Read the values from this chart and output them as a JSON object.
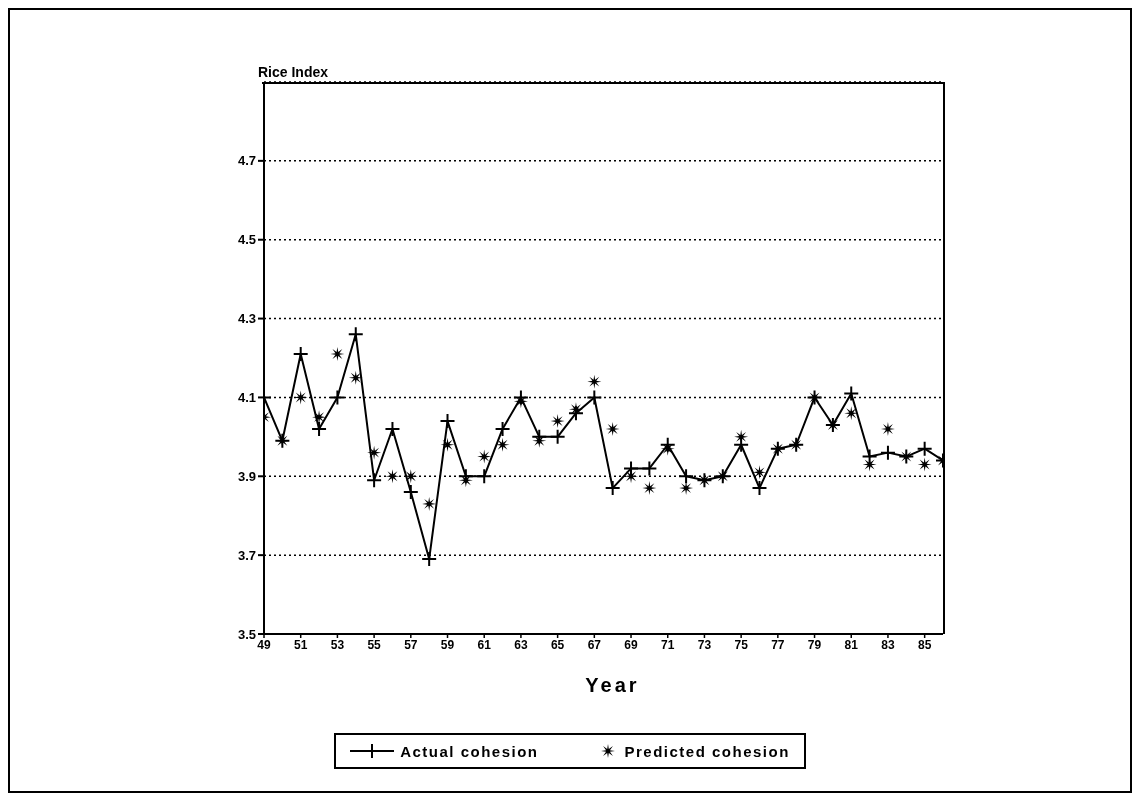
{
  "chart_data": {
    "type": "line",
    "ylabel": "Rice Index",
    "xlabel": "Year",
    "x": [
      49,
      50,
      51,
      52,
      53,
      54,
      55,
      56,
      57,
      58,
      59,
      60,
      61,
      62,
      63,
      64,
      65,
      66,
      67,
      68,
      69,
      70,
      71,
      72,
      73,
      74,
      75,
      76,
      77,
      78,
      79,
      80,
      81,
      82,
      83,
      84,
      85,
      86
    ],
    "series": [
      {
        "name": "Actual cohesion",
        "type": "line",
        "marker": "cross",
        "color": "#000000",
        "values": [
          4.1,
          3.99,
          4.21,
          4.02,
          4.1,
          4.26,
          3.89,
          4.02,
          3.86,
          3.69,
          4.04,
          3.9,
          3.9,
          4.02,
          4.1,
          4.0,
          4.0,
          4.06,
          4.1,
          3.87,
          3.92,
          3.92,
          3.98,
          3.9,
          3.89,
          3.9,
          3.98,
          3.87,
          3.97,
          3.98,
          4.1,
          4.03,
          4.11,
          3.95,
          3.96,
          3.95,
          3.97,
          3.94
        ]
      },
      {
        "name": "Predicted cohesion",
        "type": "scatter",
        "marker": "star",
        "color": "#000000",
        "values": [
          4.05,
          3.99,
          4.1,
          4.05,
          4.21,
          4.15,
          3.96,
          3.9,
          3.9,
          3.83,
          3.98,
          3.89,
          3.95,
          3.98,
          4.09,
          3.99,
          4.04,
          4.07,
          4.14,
          4.02,
          3.9,
          3.87,
          3.97,
          3.87,
          3.89,
          3.9,
          4.0,
          3.91,
          3.97,
          3.98,
          4.1,
          4.03,
          4.06,
          3.93,
          4.02,
          3.95,
          3.93,
          3.94
        ]
      }
    ],
    "xlim": [
      49,
      86
    ],
    "xticks": [
      49,
      51,
      53,
      55,
      57,
      59,
      61,
      63,
      65,
      67,
      69,
      71,
      73,
      75,
      77,
      79,
      81,
      83,
      85
    ],
    "ylim": [
      3.5,
      4.9
    ],
    "yticks": [
      3.5,
      3.7,
      3.9,
      4.1,
      4.3,
      4.5,
      4.7
    ],
    "grid": "y",
    "legend": "bottom"
  }
}
